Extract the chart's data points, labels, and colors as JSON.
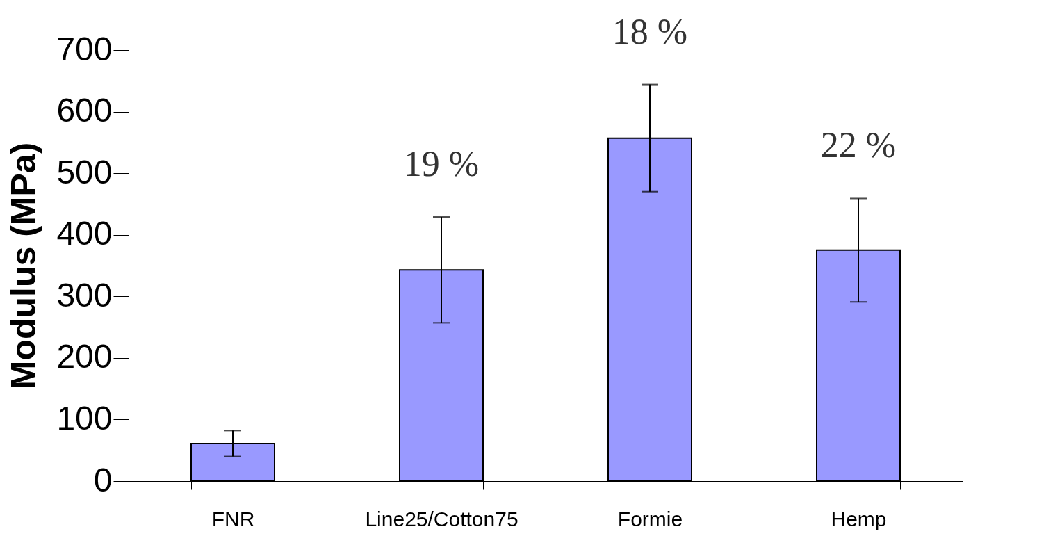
{
  "chart_data": {
    "type": "bar",
    "ylabel": "Modulus (MPa)",
    "categories": [
      "FNR",
      "Line25/Cotton75",
      "Formie",
      "Hemp"
    ],
    "values": [
      61,
      343,
      557,
      375
    ],
    "errors": [
      21,
      86,
      87,
      84
    ],
    "color": "#9999ff",
    "ylim": [
      0,
      700
    ],
    "yticks": [
      0,
      100,
      200,
      300,
      400,
      500,
      600,
      700
    ],
    "grid": false,
    "annotations": [
      "19 %",
      "18 %",
      "22 %"
    ]
  }
}
